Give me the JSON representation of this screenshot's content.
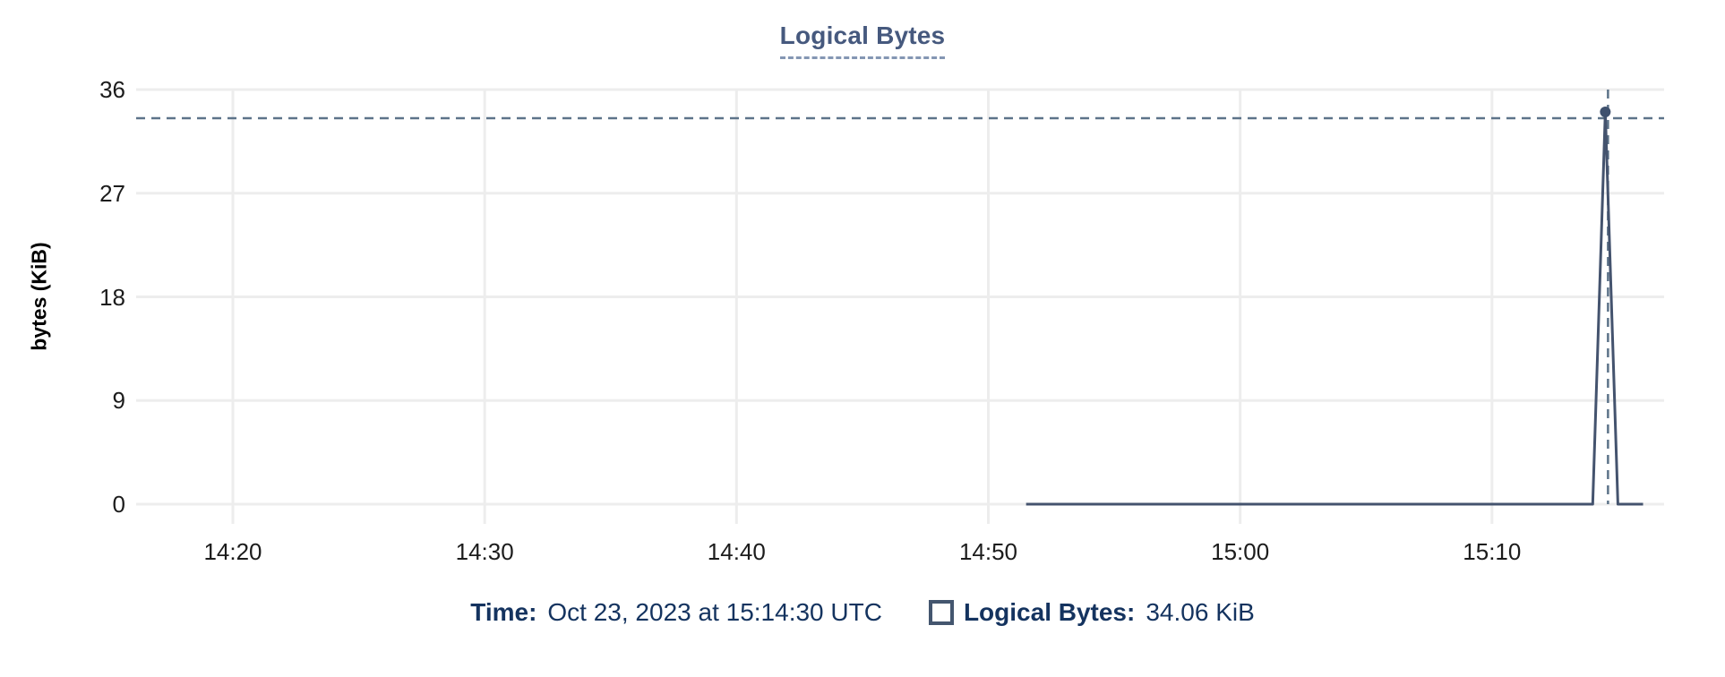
{
  "title": "Logical Bytes",
  "y_axis_title": "bytes (KiB)",
  "tooltip": {
    "time_label": "Time:",
    "time_value": "Oct 23, 2023 at 15:14:30 UTC",
    "series_label": "Logical Bytes:",
    "series_value": "34.06 KiB"
  },
  "colors": {
    "title": "#46597e",
    "series_line": "#44536e",
    "marker": "#3f516e",
    "crosshair": "#5d7389",
    "grid": "#ededed",
    "tick_text": "#1c1c1c",
    "tooltip_text": "#14335f"
  },
  "chart_data": {
    "type": "line",
    "title": "Logical Bytes",
    "ylabel": "bytes (KiB)",
    "xlabel": "",
    "ylim": [
      0,
      36
    ],
    "y_ticks": [
      0,
      9,
      18,
      27,
      36
    ],
    "x_ticks": [
      "14:20",
      "14:30",
      "14:40",
      "14:50",
      "15:00",
      "15:10"
    ],
    "x_range": [
      "14:16:10",
      "15:16:55"
    ],
    "grid": true,
    "legend_position": "bottom",
    "series": [
      {
        "name": "Logical Bytes",
        "points": [
          {
            "t": "14:51:30",
            "v": 0
          },
          {
            "t": "15:14:00",
            "v": 0
          },
          {
            "t": "15:14:30",
            "v": 34.06
          },
          {
            "t": "15:15:00",
            "v": 0
          },
          {
            "t": "15:16:00",
            "v": 0
          }
        ]
      }
    ],
    "highlighted_point": {
      "t": "15:14:30",
      "v": 34.06,
      "label": "34.06 KiB"
    },
    "crosshair": {
      "t": "15:14:30",
      "v": 34.06
    }
  }
}
